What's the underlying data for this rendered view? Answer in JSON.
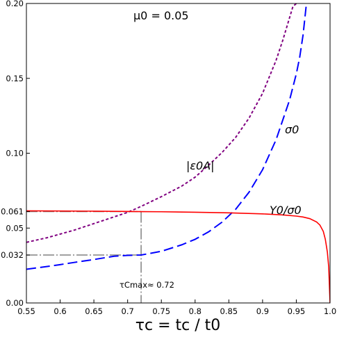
{
  "chart_data": {
    "type": "line",
    "title": "",
    "xlabel": "τc = tc / t0",
    "ylabel": "",
    "xlim": [
      0.55,
      1.0
    ],
    "ylim": [
      0.0,
      0.2
    ],
    "grid": false,
    "x_ticks": [
      0.55,
      0.6,
      0.65,
      0.7,
      0.75,
      0.8,
      0.85,
      0.9,
      0.95,
      1.0
    ],
    "x_tick_labels": [
      "0.55",
      "0.6",
      "0.65",
      "0.7",
      "0.75",
      "0.8",
      "0.85",
      "0.9",
      "0.95",
      "1.0"
    ],
    "y_ticks": [
      0.0,
      0.032,
      0.05,
      0.061,
      0.1,
      0.15,
      0.2
    ],
    "y_tick_labels": [
      "0.00",
      "0.032",
      "0.05",
      "0.061",
      "0.10",
      "0.15",
      "0.20"
    ],
    "annotations": {
      "mu": "μ0 = 0.05",
      "tau_max": "τCmax≈ 0.72"
    },
    "reference_lines": {
      "tau_max": 0.72,
      "y_upper": 0.061,
      "y_lower": 0.032
    },
    "series": [
      {
        "name": "|ε0A|",
        "color": "#800080",
        "style": "short-dash",
        "x": [
          0.55,
          0.58,
          0.6,
          0.62,
          0.65,
          0.68,
          0.7,
          0.72,
          0.75,
          0.78,
          0.8,
          0.82,
          0.84,
          0.86,
          0.88,
          0.9,
          0.92,
          0.93,
          0.94,
          0.945,
          0.95
        ],
        "y": [
          0.0405,
          0.0435,
          0.046,
          0.0485,
          0.053,
          0.0575,
          0.0605,
          0.0645,
          0.071,
          0.078,
          0.084,
          0.092,
          0.1005,
          0.1105,
          0.1235,
          0.14,
          0.162,
          0.1755,
          0.1905,
          0.198,
          0.2
        ]
      },
      {
        "name": "σ0",
        "color": "#0000ff",
        "style": "long-dash",
        "x": [
          0.55,
          0.58,
          0.6,
          0.62,
          0.65,
          0.68,
          0.7,
          0.72,
          0.75,
          0.78,
          0.8,
          0.82,
          0.84,
          0.86,
          0.88,
          0.9,
          0.92,
          0.94,
          0.95,
          0.955,
          0.96,
          0.965
        ],
        "y": [
          0.0225,
          0.0243,
          0.0256,
          0.027,
          0.029,
          0.0312,
          0.0318,
          0.032,
          0.0345,
          0.0388,
          0.0425,
          0.0475,
          0.054,
          0.0625,
          0.074,
          0.089,
          0.109,
          0.1355,
          0.153,
          0.164,
          0.179,
          0.2
        ]
      },
      {
        "name": "Y0/σ0",
        "color": "#ff0000",
        "style": "solid",
        "x": [
          0.55,
          0.6,
          0.65,
          0.7,
          0.72,
          0.75,
          0.8,
          0.85,
          0.9,
          0.93,
          0.95,
          0.96,
          0.97,
          0.98,
          0.985,
          0.99,
          0.993,
          0.996,
          0.998,
          1.0
        ],
        "y": [
          0.0615,
          0.0614,
          0.0613,
          0.0611,
          0.061,
          0.0609,
          0.0606,
          0.0602,
          0.0595,
          0.0588,
          0.058,
          0.0574,
          0.0563,
          0.0541,
          0.052,
          0.0478,
          0.0425,
          0.034,
          0.024,
          0.0
        ]
      }
    ]
  }
}
